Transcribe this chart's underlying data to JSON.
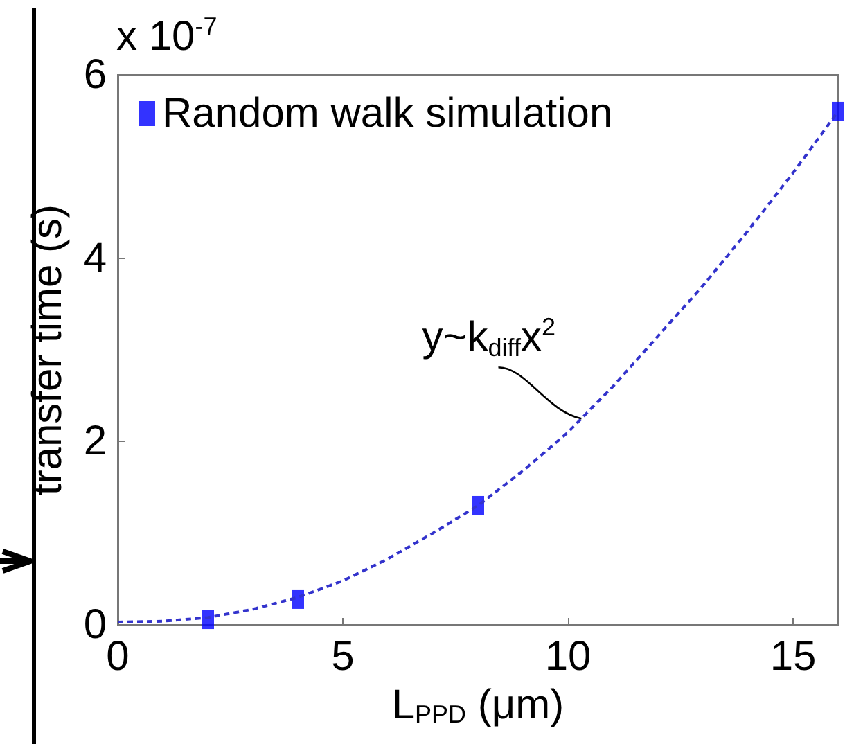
{
  "chart_data": {
    "type": "scatter",
    "xlabel": "L$_{PPD}$ (μm)",
    "ylabel": "transfer time (s)",
    "xlim": [
      0,
      16
    ],
    "xticks": [
      0,
      5,
      10,
      15
    ],
    "ylim": [
      0,
      6
    ],
    "yticks": [
      0,
      2,
      4,
      6
    ],
    "series": [
      {
        "name": "Random walk simulation",
        "color": "#0000ff",
        "marker": "square",
        "x": [
          2,
          4,
          8,
          16
        ],
        "values": [
          0.06,
          0.28,
          1.3,
          5.6
        ]
      },
      {
        "type": "line",
        "color": "#3333cc",
        "line_style": "dashed",
        "marker": "none",
        "x": [
          0,
          1,
          2,
          3,
          4,
          5,
          6,
          7,
          8,
          9,
          10,
          11,
          12,
          13,
          14,
          15,
          16
        ],
        "values": [
          0.03,
          0.04,
          0.08,
          0.17,
          0.3,
          0.48,
          0.72,
          1.0,
          1.3,
          1.68,
          2.1,
          2.6,
          3.15,
          3.7,
          4.3,
          4.93,
          5.6
        ]
      }
    ],
    "annotations": [
      "x 10$^{-7}$",
      {
        "text": "y~k$_{diff}$x$^{2}$",
        "x": 10.3,
        "y": 2.25
      }
    ],
    "legend": "top left",
    "grid": false
  }
}
